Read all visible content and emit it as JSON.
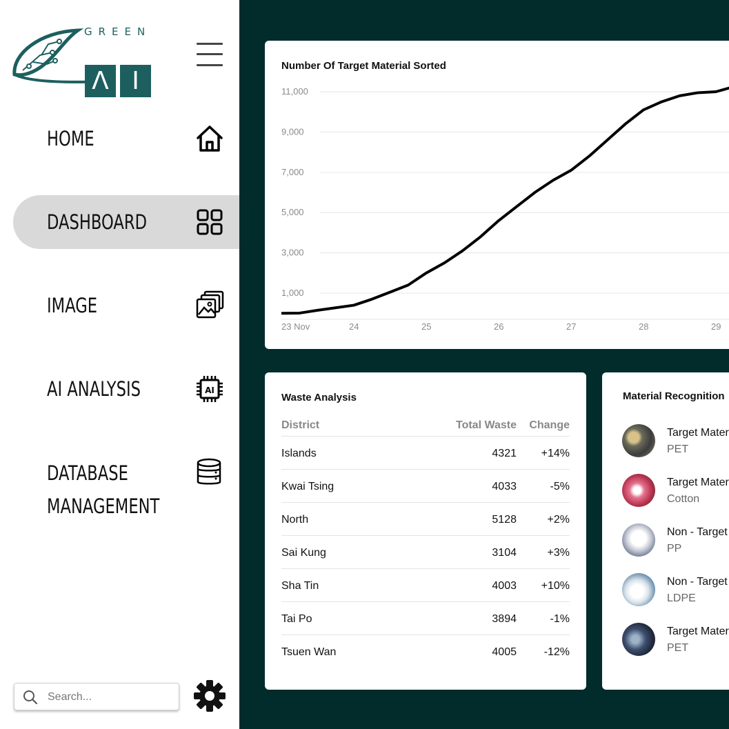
{
  "logo": {
    "word_top": "GREEN",
    "letter_a": "Λ",
    "letter_i": "I"
  },
  "nav": {
    "items": [
      {
        "label": "HOME",
        "icon": "home-icon"
      },
      {
        "label": "DASHBOARD",
        "icon": "grid-icon",
        "active": true
      },
      {
        "label": "IMAGE",
        "icon": "images-icon"
      },
      {
        "label": "AI ANALYSIS",
        "icon": "ai-chip-icon"
      },
      {
        "label_line1": "DATABASE",
        "label_line2": "MANAGEMENT",
        "icon": "database-icon"
      }
    ]
  },
  "search": {
    "placeholder": "Search...",
    "icon": "search-icon"
  },
  "settings": {
    "icon": "gear-icon"
  },
  "colors": {
    "main_bg": "#022b2b",
    "brand": "#1d5f5f",
    "active_nav": "#d9d9d9"
  },
  "chart_title": "Number Of Target Material Sorted",
  "chart_data": {
    "type": "line",
    "title": "Number Of Target Material Sorted",
    "x_tick_labels": [
      "23 Nov",
      "24",
      "25",
      "26",
      "27",
      "28",
      "29"
    ],
    "y_tick_labels": [
      "11,000",
      "9,000",
      "7,000",
      "5,000",
      "3,000",
      "1,000"
    ],
    "ylim": [
      -300,
      11000
    ],
    "grid": true,
    "series": [
      {
        "x": [
          23.0,
          23.25,
          23.5,
          24.0,
          24.25,
          24.5,
          24.75,
          25.0,
          25.25,
          25.5,
          25.75,
          26.0,
          26.25,
          26.5,
          26.75,
          27.0,
          27.25,
          27.5,
          27.75,
          28.0,
          28.25,
          28.5,
          28.75,
          29.0,
          29.2
        ],
        "y": [
          0,
          10,
          150,
          400,
          700,
          1050,
          1400,
          2000,
          2500,
          3100,
          3800,
          4600,
          5300,
          6000,
          6600,
          7100,
          7800,
          8600,
          9400,
          10100,
          10500,
          10800,
          10950,
          11000,
          11200
        ]
      }
    ]
  },
  "waste_analysis": {
    "title": "Waste Analysis",
    "columns": [
      "District",
      "Total Waste",
      "Change"
    ],
    "rows": [
      {
        "district": "Islands",
        "total": "4321",
        "change": "+14%"
      },
      {
        "district": "Kwai Tsing",
        "total": "4033",
        "change": "-5%"
      },
      {
        "district": "North",
        "total": "5128",
        "change": "+2%"
      },
      {
        "district": "Sai Kung",
        "total": "3104",
        "change": "+3%"
      },
      {
        "district": "Sha Tin",
        "total": "4003",
        "change": "+10%"
      },
      {
        "district": "Tai Po",
        "total": "3894",
        "change": "-1%"
      },
      {
        "district": "Tsuen Wan",
        "total": "4005",
        "change": "-12%"
      }
    ]
  },
  "material_recognition": {
    "title": "Material Recognition",
    "items": [
      {
        "title": "Target Material",
        "material": "PET"
      },
      {
        "title": "Target Material",
        "material": "Cotton"
      },
      {
        "title": "Non - Target Material",
        "material": "PP"
      },
      {
        "title": "Non - Target Material",
        "material": "LDPE"
      },
      {
        "title": "Target Material",
        "material": "PET"
      }
    ]
  }
}
